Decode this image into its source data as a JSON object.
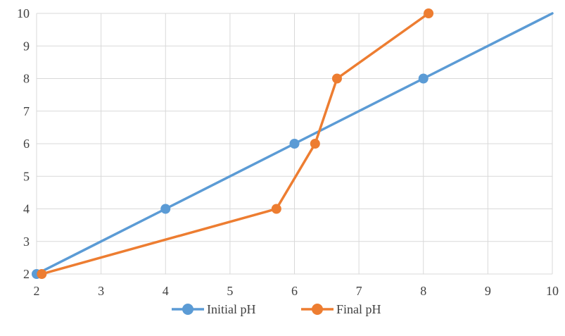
{
  "chart_data": {
    "type": "line",
    "title": "",
    "xlabel": "",
    "ylabel": "",
    "xlim": [
      2,
      10
    ],
    "ylim": [
      2,
      10
    ],
    "x_ticks": [
      2,
      3,
      4,
      5,
      6,
      7,
      8,
      9,
      10
    ],
    "y_ticks": [
      2,
      3,
      4,
      5,
      6,
      7,
      8,
      9,
      10
    ],
    "grid": true,
    "legend_position": "bottom",
    "series": [
      {
        "name": "Initial pH",
        "color": "#5B9BD5",
        "points": [
          [
            2,
            2
          ],
          [
            4,
            4
          ],
          [
            6,
            6
          ],
          [
            8,
            8
          ],
          [
            10,
            10
          ]
        ],
        "markers": [
          true,
          true,
          true,
          true,
          false
        ]
      },
      {
        "name": "Final pH",
        "color": "#ED7D31",
        "points": [
          [
            2.08,
            2
          ],
          [
            5.72,
            4
          ],
          [
            6.32,
            6
          ],
          [
            6.66,
            8
          ],
          [
            8.08,
            10
          ]
        ],
        "markers": [
          true,
          true,
          true,
          true,
          true
        ]
      }
    ]
  }
}
